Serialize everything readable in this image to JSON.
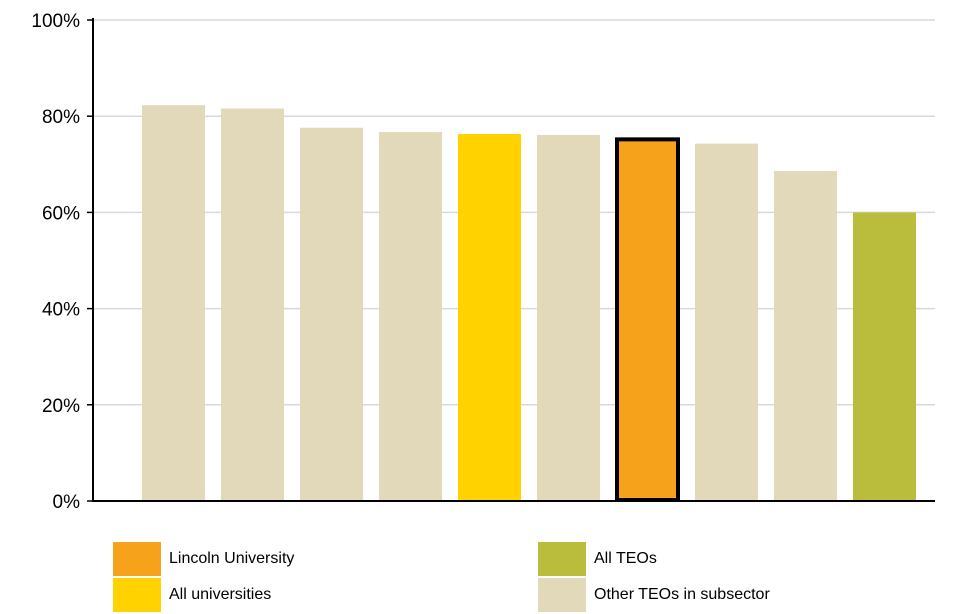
{
  "chart_data": {
    "type": "bar",
    "title": "",
    "xlabel": "",
    "ylabel": "",
    "ylim": [
      0,
      100
    ],
    "yticks": [
      "0%",
      "20%",
      "40%",
      "60%",
      "80%",
      "100%"
    ],
    "grid": true,
    "categories": [
      "",
      "",
      "",
      "",
      "",
      "",
      "",
      "",
      "",
      ""
    ],
    "values": [
      82.3,
      81.6,
      77.6,
      76.7,
      76.3,
      76.1,
      75.6,
      74.3,
      68.6,
      60.0
    ],
    "bar_groups": [
      "other",
      "other",
      "other",
      "other",
      "all_universities",
      "other",
      "lincoln",
      "other",
      "other",
      "all_teos"
    ],
    "legend_placement": "bottom"
  },
  "legend": {
    "items": [
      {
        "key": "lincoln",
        "label": "Lincoln University",
        "color": "#F7A21B"
      },
      {
        "key": "all_universities",
        "label": "All universities",
        "color": "#FFD200"
      },
      {
        "key": "all_teos",
        "label": "All TEOs",
        "color": "#BABC3C"
      },
      {
        "key": "other",
        "label": "Other TEOs in subsector",
        "color": "#E2D9BB"
      }
    ]
  },
  "highlight": {
    "outline_color": "#000000"
  }
}
